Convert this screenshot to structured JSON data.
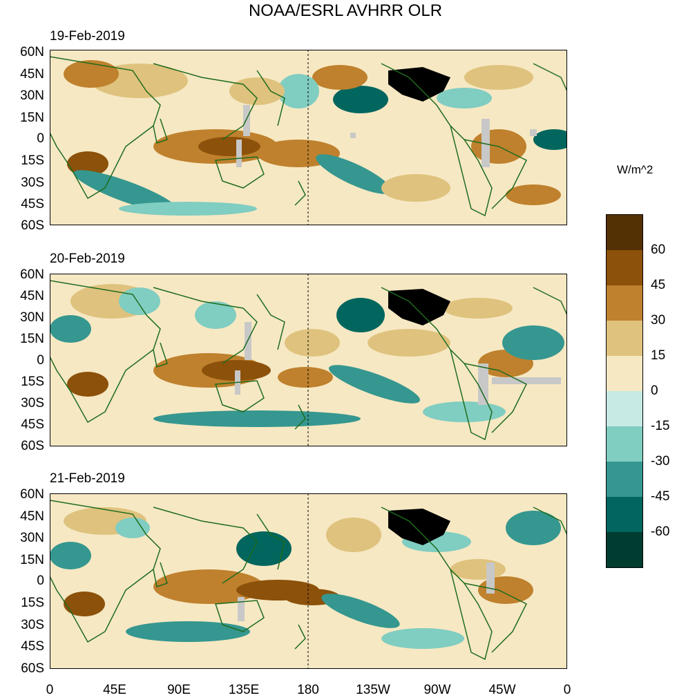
{
  "title": "NOAA/ESRL AVHRR OLR",
  "colors": {
    "ocean_bg": "#f5e4bf",
    "coast": "#1e6b1e",
    "missing": "#c8c8c8",
    "us_overlay": "#000000"
  },
  "panels": [
    {
      "date": "19-Feb-2019"
    },
    {
      "date": "20-Feb-2019"
    },
    {
      "date": "21-Feb-2019"
    }
  ],
  "lat_labels": [
    "60N",
    "45N",
    "30N",
    "15N",
    "0",
    "15S",
    "30S",
    "45S",
    "60S"
  ],
  "lon_labels": [
    "0",
    "45E",
    "90E",
    "135E",
    "180",
    "135W",
    "90W",
    "45W",
    "0"
  ],
  "colorbar": {
    "units": "W/m^2",
    "tick_labels": [
      "60",
      "45",
      "30",
      "15",
      "0",
      "-15",
      "-30",
      "-45",
      "-60"
    ],
    "colors": [
      "#543005",
      "#8c510a",
      "#bf812d",
      "#dfc27d",
      "#f6e8c3",
      "#c7eae5",
      "#80cdc1",
      "#35978f",
      "#01665e",
      "#003c30"
    ]
  }
}
